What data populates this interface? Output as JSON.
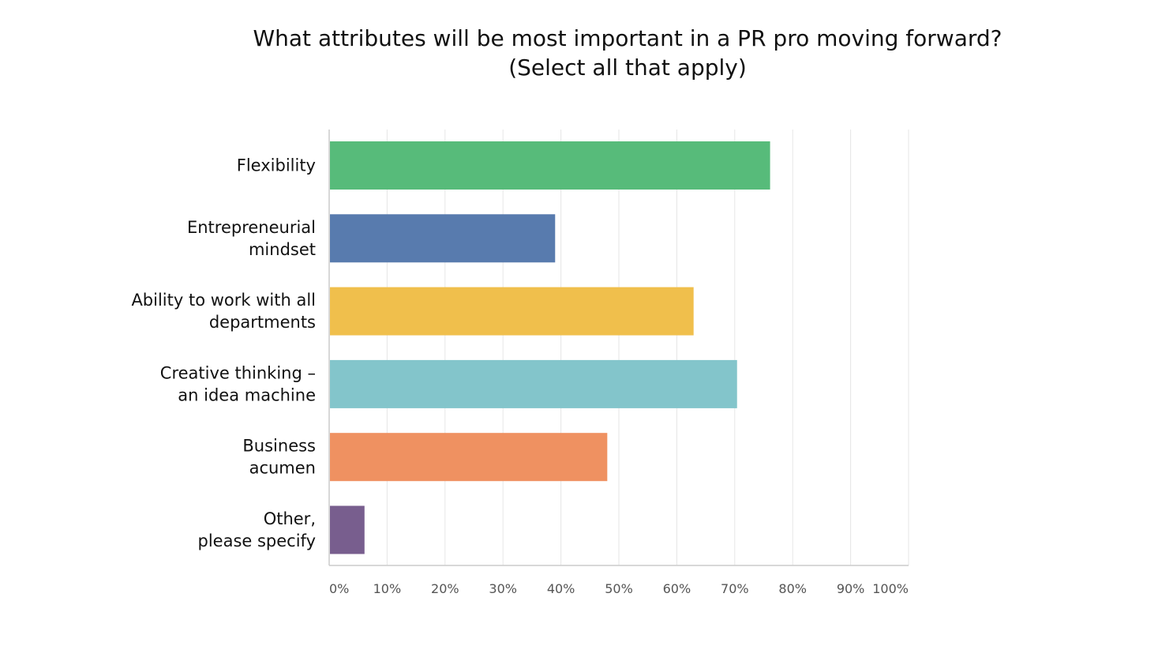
{
  "chart_data": {
    "type": "bar",
    "orientation": "horizontal",
    "title": "What attributes will be most important in a PR pro moving forward?",
    "subtitle": "(Select all that apply)",
    "categories": [
      [
        "Flexibility"
      ],
      [
        "Entrepreneurial",
        "mindset"
      ],
      [
        "Ability to work with all",
        "departments"
      ],
      [
        "Creative thinking –",
        "an idea machine"
      ],
      [
        "Business",
        "acumen"
      ],
      [
        "Other,",
        "please specify"
      ]
    ],
    "values": [
      76.1,
      39.0,
      62.9,
      70.4,
      48.0,
      6.1
    ],
    "colors": [
      "#57bb7a",
      "#587bae",
      "#f0bf4c",
      "#83c5cb",
      "#ef9161",
      "#785e8e"
    ],
    "xlim": [
      0,
      100
    ],
    "xticks": [
      "0%",
      "10%",
      "20%",
      "30%",
      "40%",
      "50%",
      "60%",
      "70%",
      "80%",
      "90%",
      "100%"
    ],
    "grid": true,
    "xlabel": "",
    "ylabel": ""
  }
}
